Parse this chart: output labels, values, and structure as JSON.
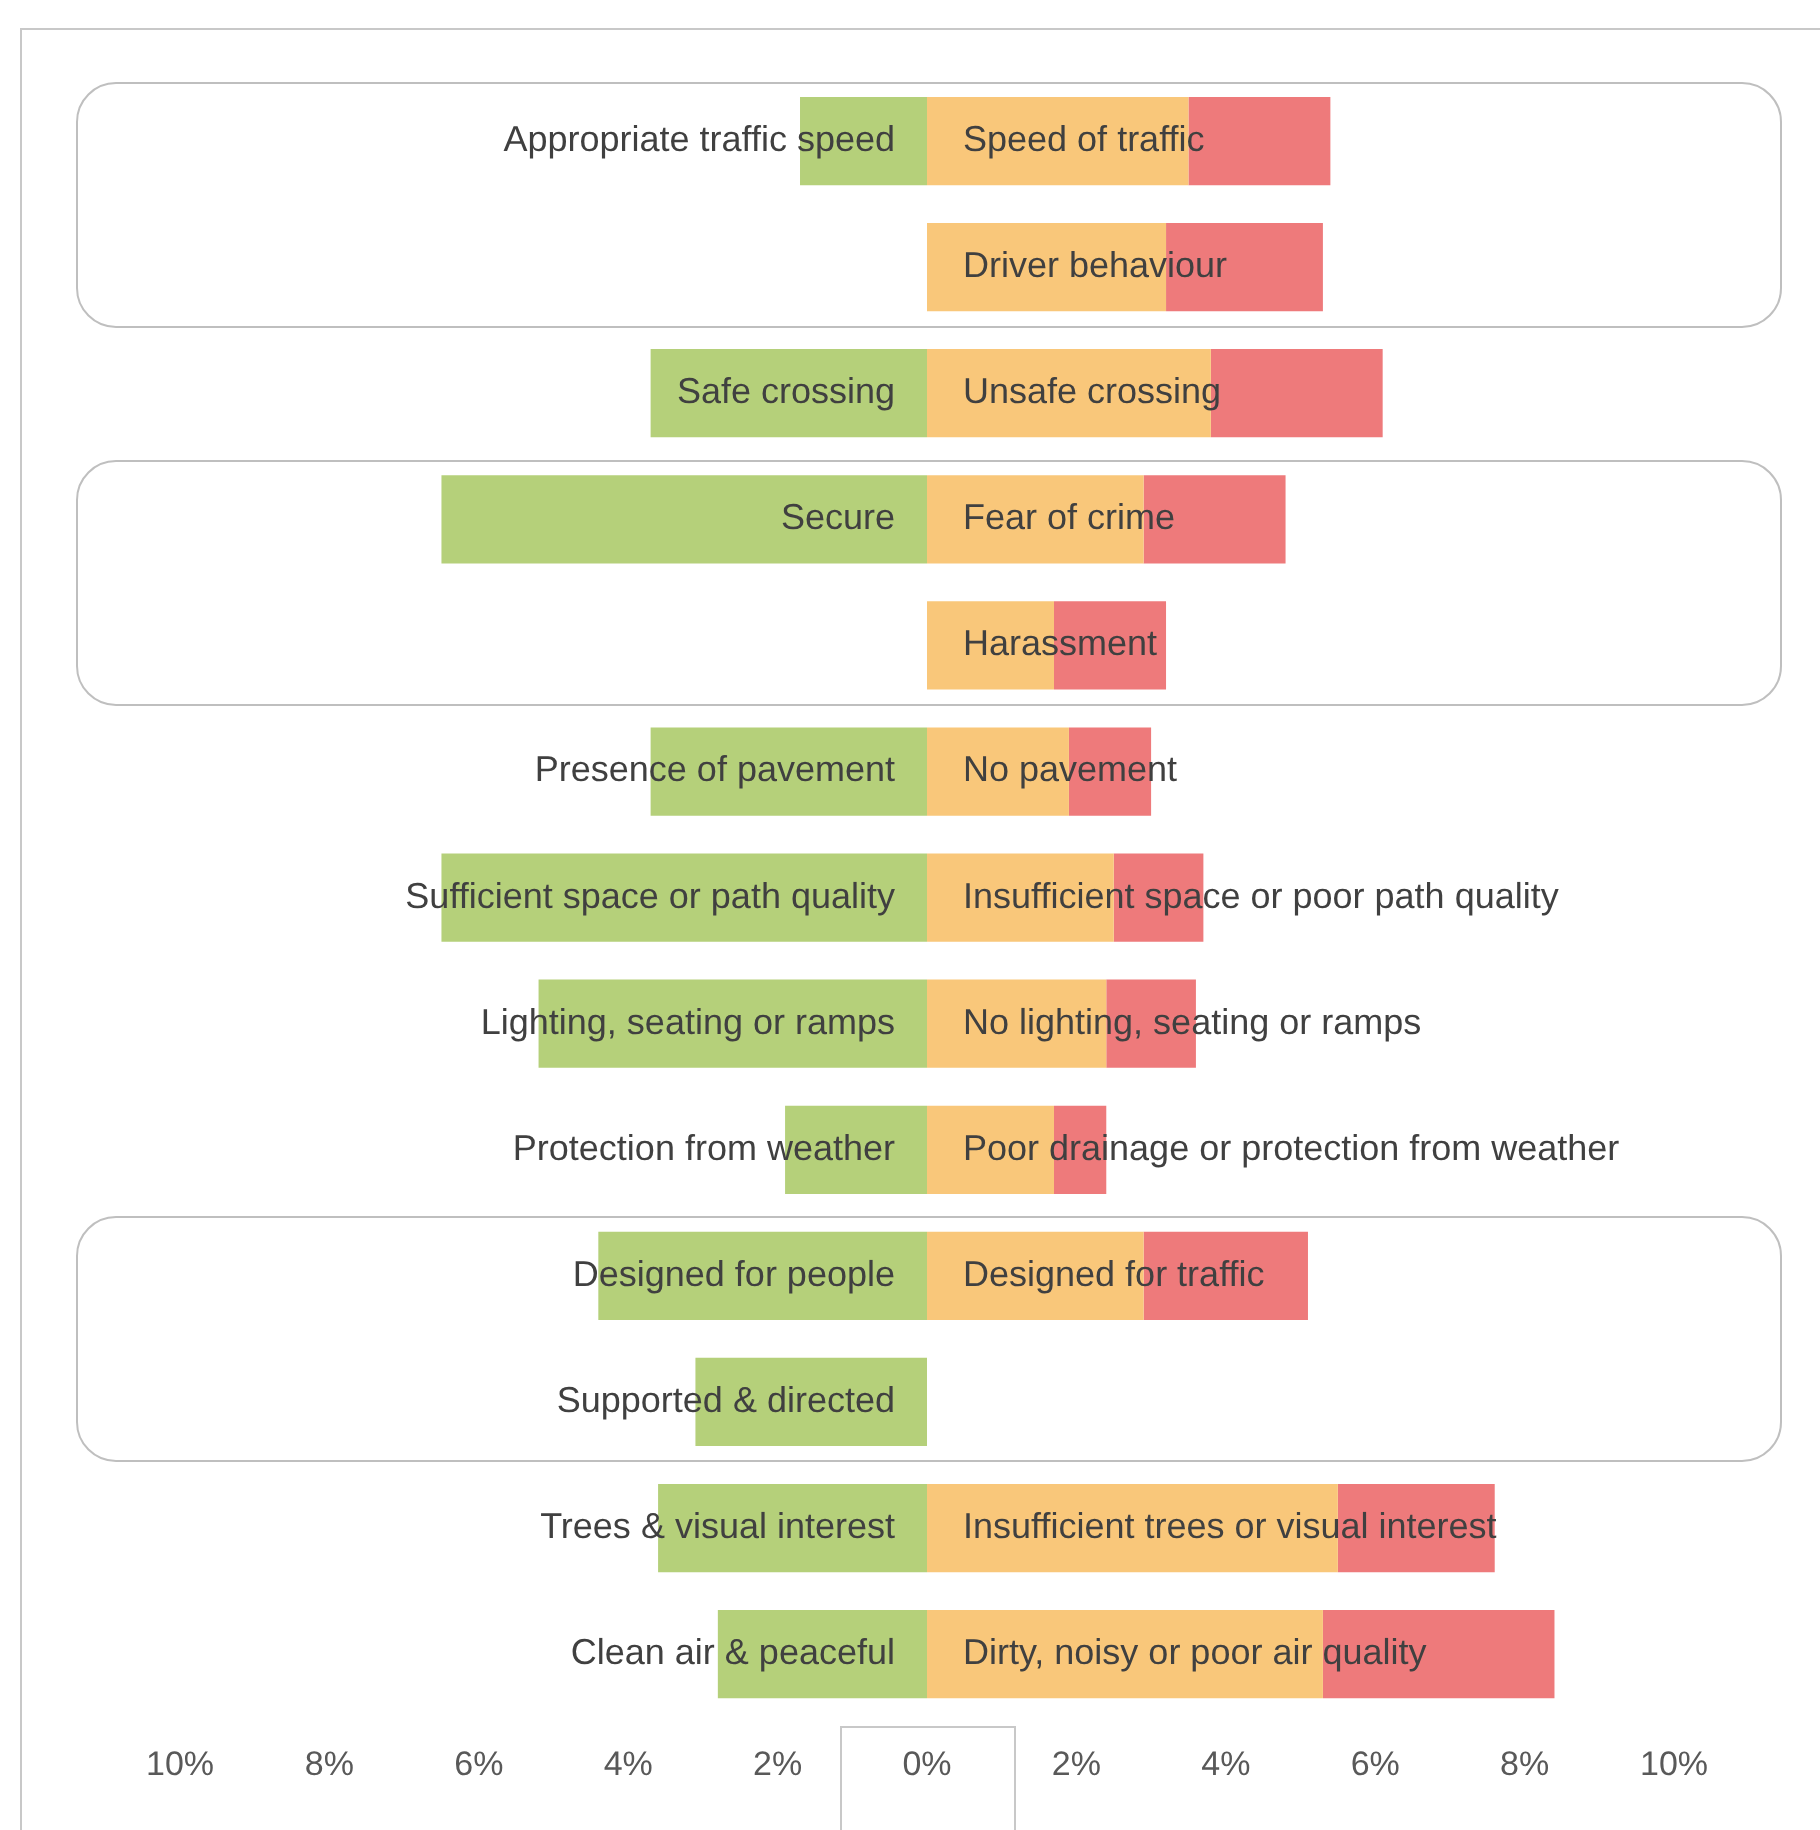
{
  "chart_data": {
    "type": "bar",
    "orientation": "horizontal",
    "stacked": true,
    "grid": false,
    "legend": false,
    "categories": [
      "Appropriate traffic speed",
      null,
      "Safe crossing",
      "Secure",
      null,
      "Presence of pavement",
      "Sufficient space or path quality",
      "Lighting, seating or ramps",
      "Protection from weather",
      "Designed for people",
      "Supported & directed",
      "Trees & visual interest",
      "Clean air & peaceful"
    ],
    "y2_categories": [
      "Speed of traffic",
      "Driver behaviour",
      "Unsafe crossing",
      "Fear of crime",
      "Harassment",
      "No pavement",
      "Insufficient space or poor path quality",
      "No lighting, seating or ramps",
      "Poor drainage or protection from weather",
      "Designed for traffic",
      null,
      "Insufficient trees or visual interest",
      "Dirty, noisy or poor air quality"
    ],
    "series": [
      {
        "color": "#b5d07a",
        "values": [
          -1.7,
          null,
          -3.7,
          -6.5,
          null,
          -3.7,
          -6.5,
          -5.2,
          -1.9,
          -4.4,
          -3.1,
          -3.6,
          -2.8
        ]
      },
      {
        "color": "#f9c77a",
        "values": [
          3.5,
          3.2,
          3.8,
          2.9,
          1.7,
          1.9,
          2.5,
          2.4,
          1.7,
          2.9,
          null,
          5.5,
          5.3
        ]
      },
      {
        "color": "#ee7a7b",
        "values": [
          1.9,
          2.1,
          2.3,
          1.9,
          1.5,
          1.1,
          1.2,
          1.2,
          0.7,
          2.2,
          null,
          2.1,
          3.1
        ]
      }
    ],
    "xlim": [
      -10,
      10
    ],
    "xticks": [
      {
        "value": -10,
        "label": "10%"
      },
      {
        "value": -8,
        "label": "8%"
      },
      {
        "value": -6,
        "label": "6%"
      },
      {
        "value": -4,
        "label": "4%"
      },
      {
        "value": -2,
        "label": "2%"
      },
      {
        "value": 0,
        "label": "0%"
      },
      {
        "value": 2,
        "label": "2%"
      },
      {
        "value": 4,
        "label": "4%"
      },
      {
        "value": 6,
        "label": "6%"
      },
      {
        "value": 8,
        "label": "8%"
      },
      {
        "value": 10,
        "label": "10%"
      }
    ]
  }
}
